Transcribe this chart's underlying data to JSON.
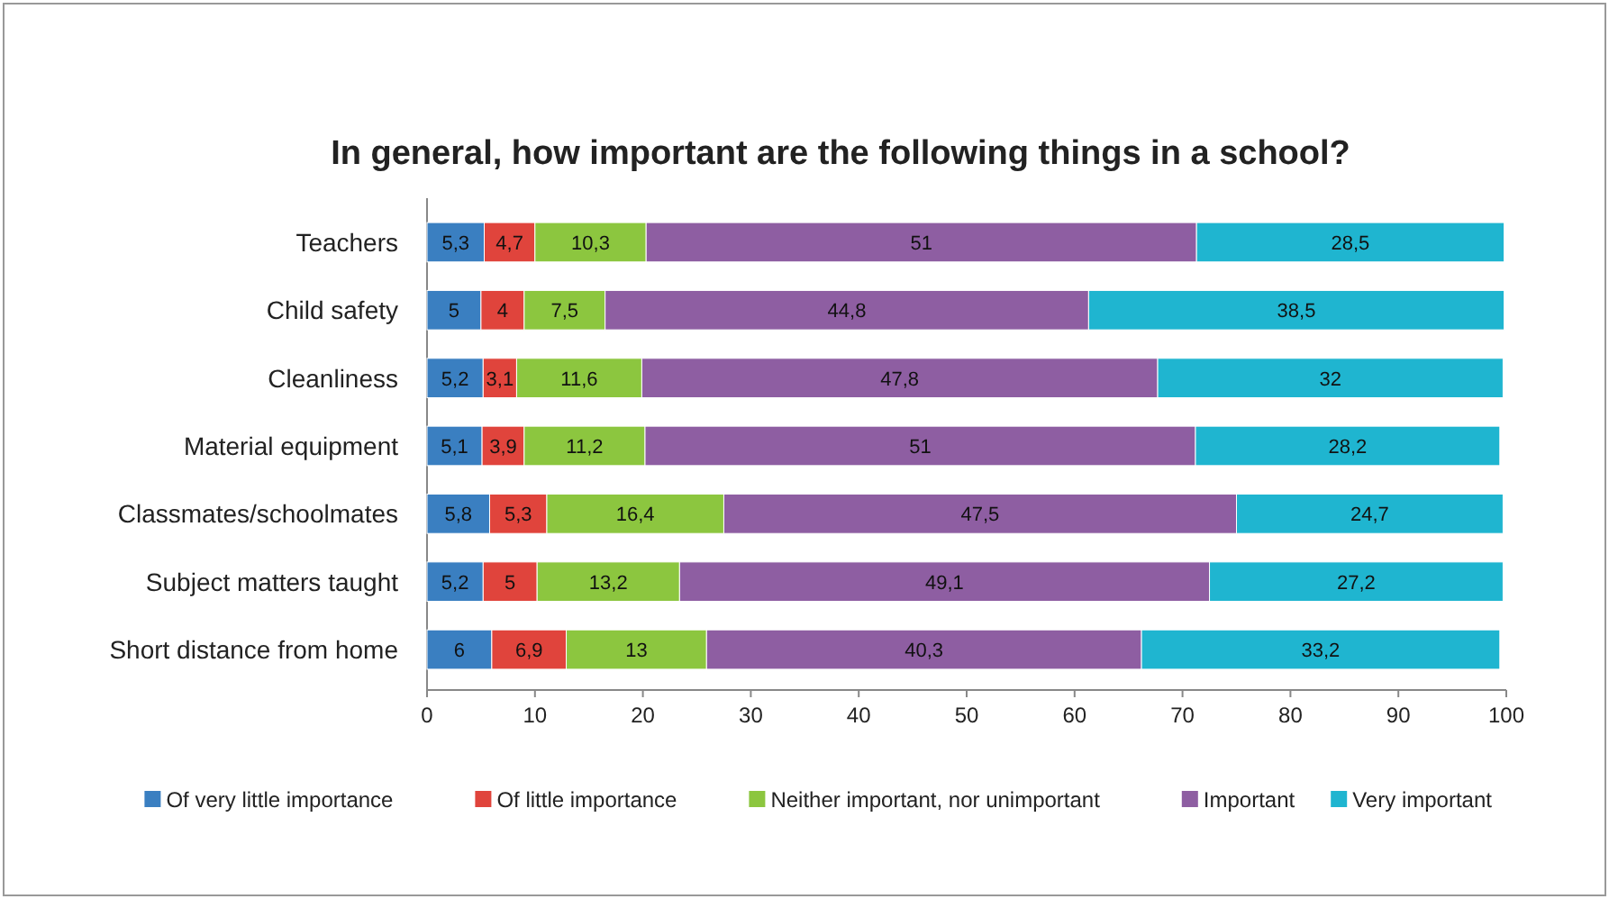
{
  "chart_data": {
    "type": "bar",
    "orientation": "horizontal",
    "stacked": true,
    "title": "In general, how important are the following things in a school?",
    "categories": [
      "Teachers",
      "Child safety",
      "Cleanliness",
      "Material equipment",
      "Classmates/schoolmates",
      "Subject matters taught",
      "Short distance from home"
    ],
    "series": [
      {
        "name": "Of very little importance",
        "color": "#3a7fc1",
        "values": [
          5.3,
          5,
          5.2,
          5.1,
          5.8,
          5.2,
          6
        ],
        "value_labels": [
          "5,3",
          "5",
          "5,2",
          "5,1",
          "5,8",
          "5,2",
          "6"
        ]
      },
      {
        "name": "Of little importance",
        "color": "#e0443c",
        "values": [
          4.7,
          4,
          3.1,
          3.9,
          5.3,
          5,
          6.9
        ],
        "value_labels": [
          "4,7",
          "4",
          "3,1",
          "3,9",
          "5,3",
          "5",
          "6,9"
        ]
      },
      {
        "name": "Neither important, nor unimportant",
        "color": "#8cc63f",
        "values": [
          10.3,
          7.5,
          11.6,
          11.2,
          16.4,
          13.2,
          13
        ],
        "value_labels": [
          "10,3",
          "7,5",
          "11,6",
          "11,2",
          "16,4",
          "13,2",
          "13"
        ]
      },
      {
        "name": "Important",
        "color": "#8e5ea2",
        "values": [
          51,
          44.8,
          47.8,
          51,
          47.5,
          49.1,
          40.3
        ],
        "value_labels": [
          "51",
          "44,8",
          "47,8",
          "51",
          "47,5",
          "49,1",
          "40,3"
        ]
      },
      {
        "name": "Very important",
        "color": "#1fb5d0",
        "values": [
          28.5,
          38.5,
          32,
          28.2,
          24.7,
          27.2,
          33.2
        ],
        "value_labels": [
          "28,5",
          "38,5",
          "32",
          "28,2",
          "24,7",
          "27,2",
          "33,2"
        ]
      }
    ],
    "xlim": [
      0,
      100
    ],
    "xticks": [
      0,
      10,
      20,
      30,
      40,
      50,
      60,
      70,
      80,
      90,
      100
    ],
    "grid": false,
    "legend": "bottom"
  }
}
